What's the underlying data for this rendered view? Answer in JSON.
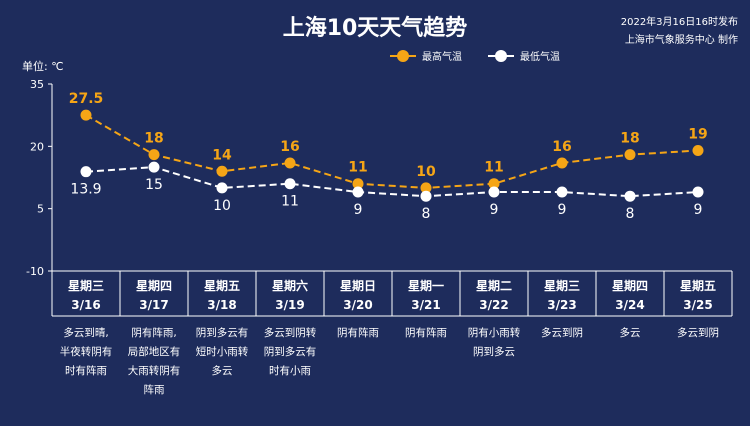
{
  "title": "上海10天天气趋势",
  "publish": {
    "line1": "2022年3月16日16时发布",
    "line2": "上海市气象服务中心 制作"
  },
  "unit_label": "单位: ℃",
  "legend": {
    "high": "最高气温",
    "low": "最低气温"
  },
  "colors": {
    "high": "#f5a516",
    "low": "#ffffff",
    "background": "#1e2c5c"
  },
  "chart_data": {
    "type": "line",
    "ylim": [
      -10,
      35
    ],
    "yticks": [
      35,
      20,
      5,
      -10
    ],
    "series": [
      {
        "name": "最高气温",
        "values": [
          27.5,
          18,
          14,
          16,
          11,
          10,
          11,
          16,
          18,
          19
        ]
      },
      {
        "name": "最低气温",
        "values": [
          13.9,
          15,
          10,
          11,
          9,
          8,
          9,
          9,
          8,
          9
        ]
      }
    ],
    "days": [
      {
        "weekday": "星期三",
        "date": "3/16",
        "weather": [
          "多云到晴,",
          "半夜转阴有",
          "时有阵雨"
        ]
      },
      {
        "weekday": "星期四",
        "date": "3/17",
        "weather": [
          "阴有阵雨,",
          "局部地区有",
          "大雨转阴有",
          "阵雨"
        ]
      },
      {
        "weekday": "星期五",
        "date": "3/18",
        "weather": [
          "阴到多云有",
          "短时小雨转",
          "多云"
        ]
      },
      {
        "weekday": "星期六",
        "date": "3/19",
        "weather": [
          "多云到阴转",
          "阴到多云有",
          "时有小雨"
        ]
      },
      {
        "weekday": "星期日",
        "date": "3/20",
        "weather": [
          "阴有阵雨"
        ]
      },
      {
        "weekday": "星期一",
        "date": "3/21",
        "weather": [
          "阴有阵雨"
        ]
      },
      {
        "weekday": "星期二",
        "date": "3/22",
        "weather": [
          "阴有小雨转",
          "阴到多云"
        ]
      },
      {
        "weekday": "星期三",
        "date": "3/23",
        "weather": [
          "多云到阴"
        ]
      },
      {
        "weekday": "星期四",
        "date": "3/24",
        "weather": [
          "多云"
        ]
      },
      {
        "weekday": "星期五",
        "date": "3/25",
        "weather": [
          "多云到阴"
        ]
      }
    ]
  }
}
